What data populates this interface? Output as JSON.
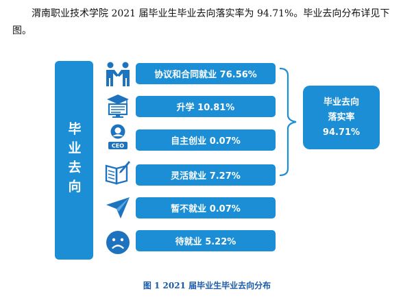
{
  "intro_text": "渭南职业技术学院 2021 届毕业生毕业去向落实率为 94.71%。毕业去向分布详见下图。",
  "left_label": "毕业去向",
  "items": [
    {
      "label": "协议和合同就业 76.56%",
      "icon": "handshake-people-icon"
    },
    {
      "label": "升学 10.81%",
      "icon": "graduation-cap-icon"
    },
    {
      "label": "自主创业 0.07%",
      "icon": "ceo-icon"
    },
    {
      "label": "灵活就业 7.27%",
      "icon": "notebook-pen-icon"
    },
    {
      "label": "暂不就业 0.07%",
      "icon": "paper-plane-icon"
    },
    {
      "label": "待就业 5.22%",
      "icon": "sad-face-icon"
    }
  ],
  "rate": {
    "line1": "毕业去向",
    "line2": "落实率",
    "value": "94.71%"
  },
  "ceo_icon_text": "CEO",
  "caption": "图 1 2021 届毕业生毕业去向分布",
  "colors": {
    "box": "#1b8ed6",
    "icon": "#1e73be",
    "caption": "#1a5aa8"
  }
}
